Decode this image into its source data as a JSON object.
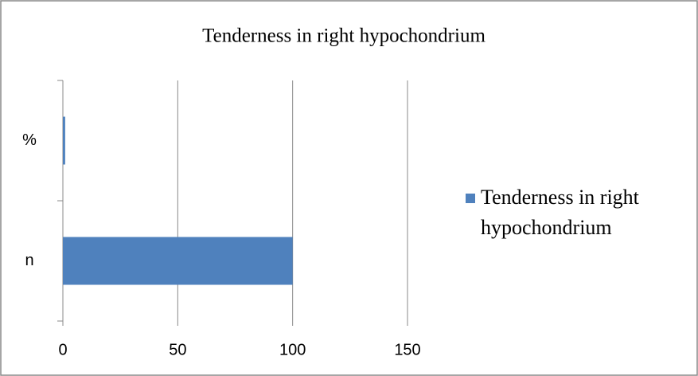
{
  "chart_data": {
    "type": "hbar",
    "title": "Tenderness in right hypochondrium",
    "categories": [
      "n",
      "%"
    ],
    "series": [
      {
        "name": "Tenderness in right hypochondrium",
        "color": "#4f81bd",
        "values": [
          100,
          1
        ]
      }
    ],
    "xlim": [
      0,
      150
    ],
    "xticks": [
      0,
      50,
      100,
      150
    ],
    "grid": true,
    "legend": "right"
  }
}
